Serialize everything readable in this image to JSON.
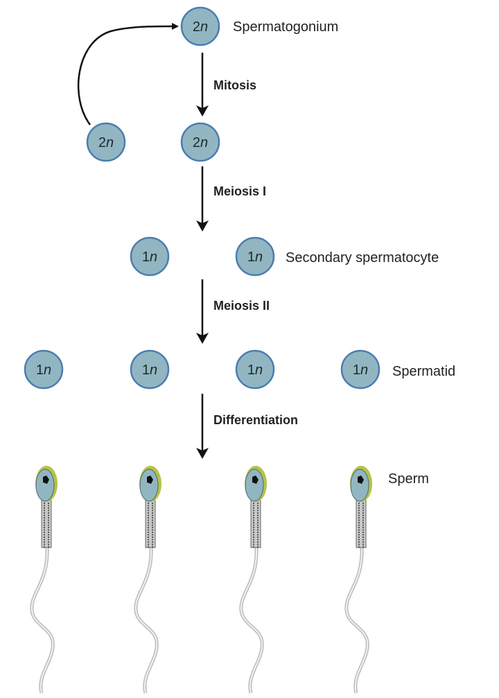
{
  "cells": {
    "spermatogonium": "2n",
    "row2": [
      "2n",
      "2n"
    ],
    "row3": [
      "1n",
      "1n"
    ],
    "row4": [
      "1n",
      "1n",
      "1n",
      "1n"
    ]
  },
  "labels": {
    "spermatogonium": "Spermatogonium",
    "secondary_spermatocyte": "Secondary spermatocyte",
    "spermatid": "Spermatid",
    "sperm": "Sperm"
  },
  "steps": {
    "mitosis": "Mitosis",
    "meiosis1": "Meiosis I",
    "meiosis2": "Meiosis II",
    "differentiation": "Differentiation"
  },
  "colors": {
    "cell_fill": "#92b6c1",
    "cell_stroke": "#4a7db1",
    "acrosome": "#b5c24a"
  }
}
